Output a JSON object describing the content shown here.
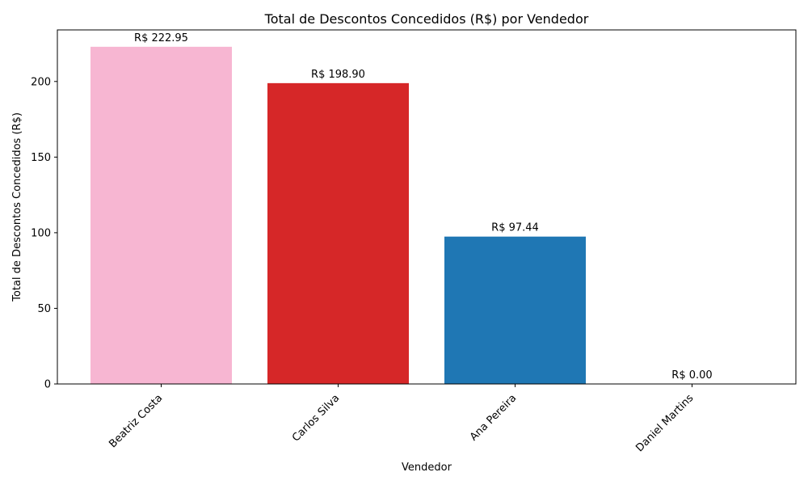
{
  "chart_data": {
    "type": "bar",
    "title": "Total de Descontos Concedidos (R$) por Vendedor",
    "xlabel": "Vendedor",
    "ylabel": "Total de Descontos Concedidos (R$)",
    "categories": [
      "Beatriz Costa",
      "Carlos Silva",
      "Ana Pereira",
      "Daniel Martins"
    ],
    "values": [
      222.95,
      198.9,
      97.44,
      0.0
    ],
    "data_labels": [
      "R$ 222.95",
      "R$ 198.90",
      "R$ 97.44",
      "R$ 0.00"
    ],
    "colors": [
      "#f7b6d2",
      "#d62728",
      "#1f77b4",
      "#1f77b4"
    ],
    "ylim": [
      0,
      234.1
    ],
    "yticks": [
      0,
      50,
      100,
      150,
      200
    ],
    "grid": false,
    "legend": false
  }
}
